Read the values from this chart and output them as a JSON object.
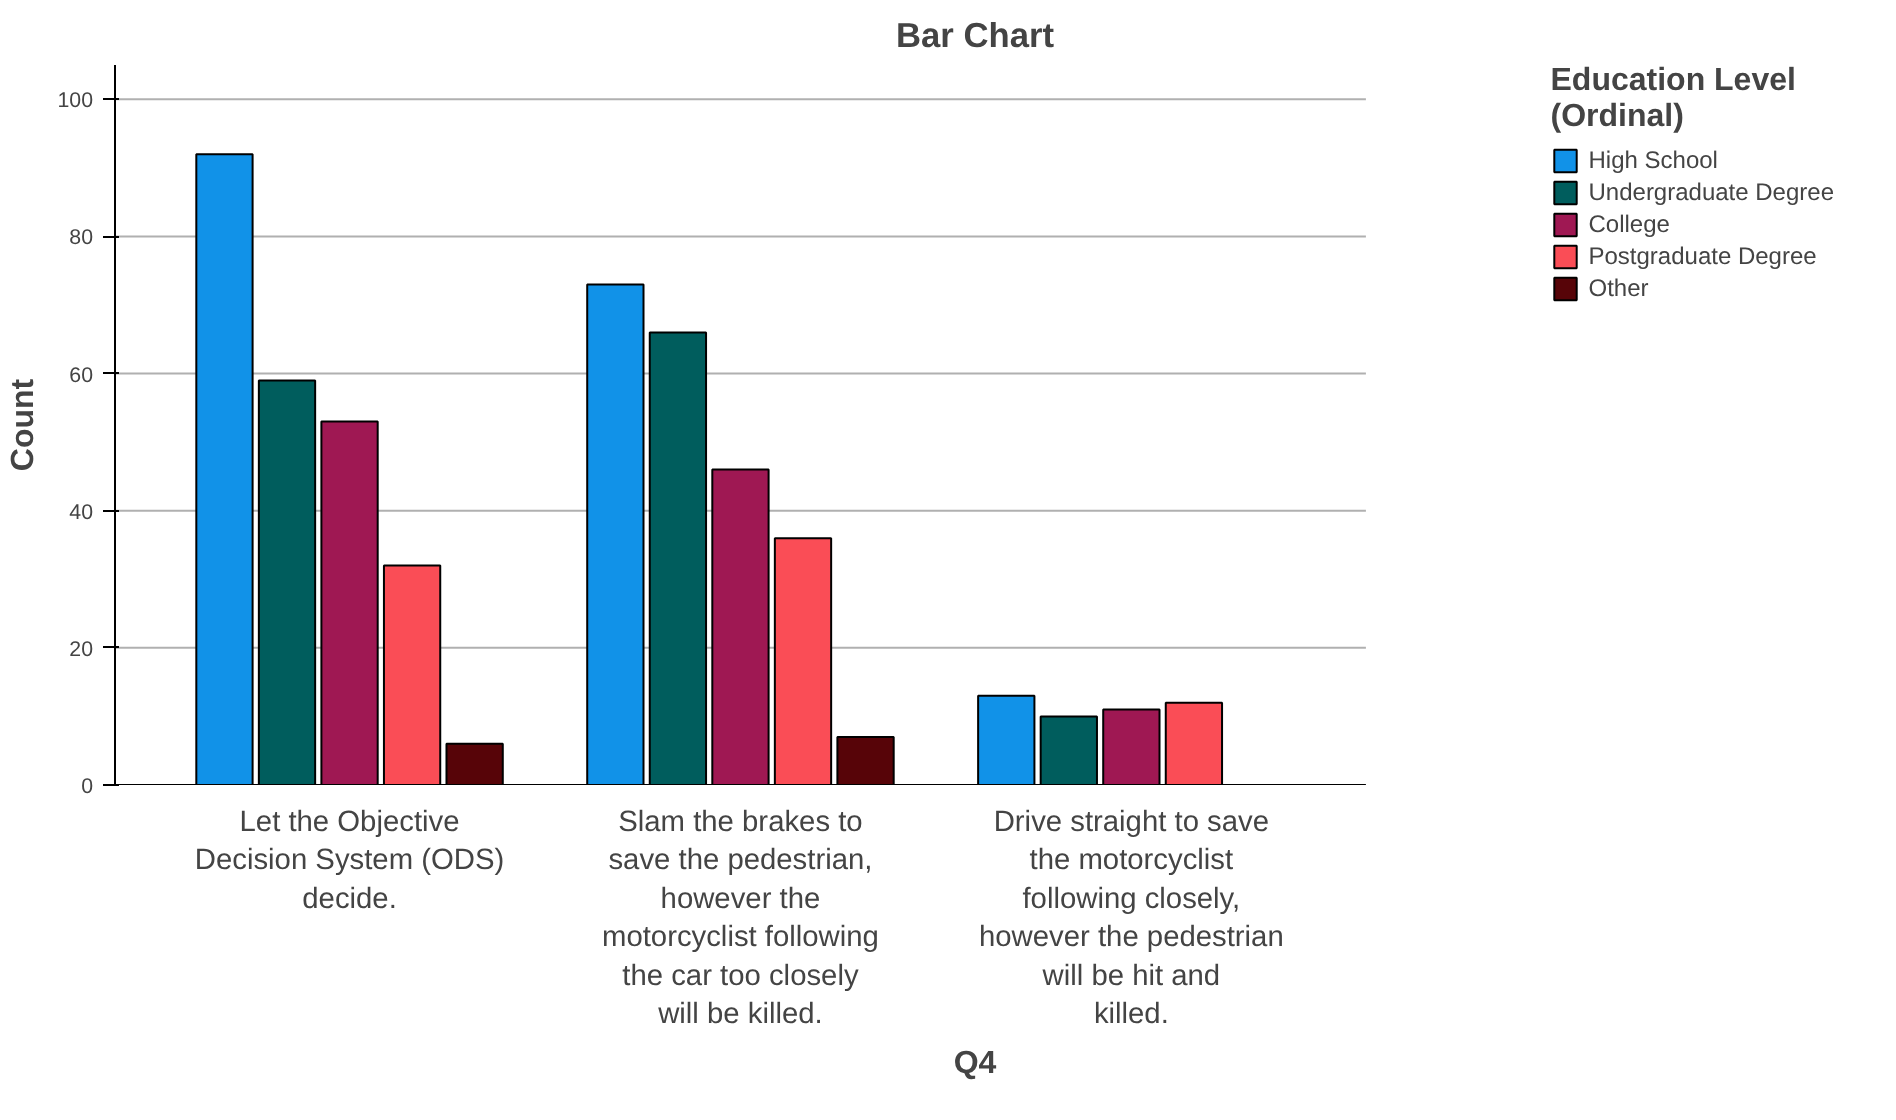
{
  "chart_data": {
    "type": "bar",
    "title": "Bar Chart",
    "xlabel": "Q4",
    "ylabel": "Count",
    "legend_title": "Education Level\n(Ordinal)",
    "categories": [
      "Let the Objective Decision System (ODS) decide.",
      "Slam the brakes to save the pedestrian, however the motorcyclist following the car too closely will be killed.",
      "Drive straight to save the motorcyclist following closely, however the pedestrian will be hit and killed."
    ],
    "series": [
      {
        "name": "High School",
        "color": "#1192e8",
        "values": [
          92,
          73,
          13
        ]
      },
      {
        "name": "Undergraduate Degree",
        "color": "#005d5d",
        "values": [
          59,
          66,
          10
        ]
      },
      {
        "name": "College",
        "color": "#9f1853",
        "values": [
          53,
          46,
          11
        ]
      },
      {
        "name": "Postgraduate Degree",
        "color": "#fa4d56",
        "values": [
          32,
          36,
          12
        ]
      },
      {
        "name": "Other",
        "color": "#570408",
        "values": [
          6,
          7,
          null
        ]
      }
    ],
    "ylim": [
      0,
      105
    ],
    "yticks": [
      0,
      20,
      40,
      60,
      80,
      100
    ],
    "grid": "y",
    "legend": "right"
  }
}
